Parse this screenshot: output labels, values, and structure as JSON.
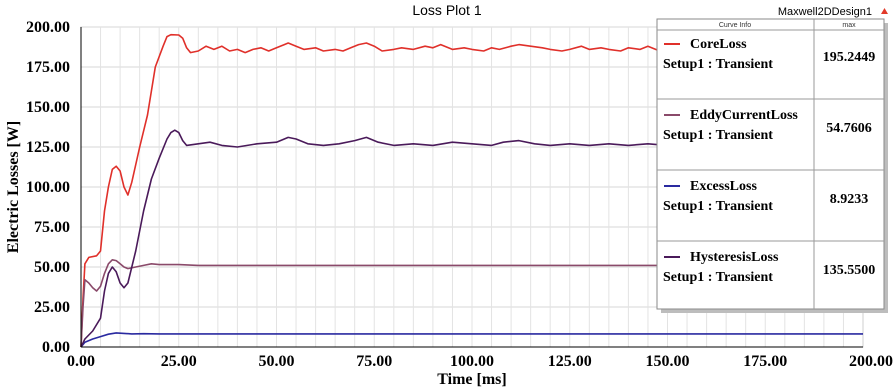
{
  "chart_data": {
    "type": "line",
    "title": "Loss Plot 1",
    "design_name": "Maxwell2DDesign1",
    "xlabel": "Time [ms]",
    "ylabel": "Electric Losses [W]",
    "xlim": [
      0,
      200
    ],
    "ylim": [
      0,
      200
    ],
    "x_ticks": [
      "0.00",
      "25.00",
      "50.00",
      "75.00",
      "100.00",
      "125.00",
      "150.00",
      "175.00",
      "200.00"
    ],
    "y_ticks": [
      "0.00",
      "25.00",
      "50.00",
      "75.00",
      "100.00",
      "125.00",
      "150.00",
      "175.00",
      "200.00"
    ],
    "grid": true,
    "legend": {
      "placement": "top-right",
      "header_left": "Curve Info",
      "header_right": "max",
      "entries": [
        {
          "name": "CoreLoss",
          "setup": "Setup1 : Transient",
          "max": "195.2449",
          "color": "#e0302a"
        },
        {
          "name": "EddyCurrentLoss",
          "setup": "Setup1 : Transient",
          "max": "54.7606",
          "color": "#8a4a6a"
        },
        {
          "name": "ExcessLoss",
          "setup": "Setup1 : Transient",
          "max": "8.9233",
          "color": "#2a2aa0"
        },
        {
          "name": "HysteresisLoss",
          "setup": "Setup1 : Transient",
          "max": "135.5500",
          "color": "#4a1a5a"
        }
      ]
    },
    "series": [
      {
        "name": "CoreLoss",
        "color": "#e0302a",
        "points": [
          [
            0,
            0
          ],
          [
            0.5,
            30
          ],
          [
            1,
            52
          ],
          [
            2,
            56
          ],
          [
            4,
            57
          ],
          [
            5,
            60
          ],
          [
            6,
            85
          ],
          [
            7,
            100
          ],
          [
            8,
            111
          ],
          [
            9,
            113
          ],
          [
            10,
            110
          ],
          [
            11,
            100
          ],
          [
            12,
            95
          ],
          [
            13,
            103
          ],
          [
            15,
            125
          ],
          [
            17,
            145
          ],
          [
            19,
            175
          ],
          [
            21,
            188
          ],
          [
            22,
            194
          ],
          [
            23,
            195.2
          ],
          [
            25,
            195
          ],
          [
            26,
            193
          ],
          [
            27,
            187
          ],
          [
            28,
            184
          ],
          [
            30,
            185
          ],
          [
            32,
            188
          ],
          [
            34,
            186
          ],
          [
            36,
            188
          ],
          [
            38,
            185
          ],
          [
            40,
            186
          ],
          [
            42,
            184
          ],
          [
            44,
            186
          ],
          [
            46,
            187
          ],
          [
            48,
            185
          ],
          [
            50,
            187
          ],
          [
            52,
            189
          ],
          [
            53,
            190
          ],
          [
            55,
            188
          ],
          [
            57,
            186
          ],
          [
            60,
            187
          ],
          [
            62,
            185
          ],
          [
            65,
            186
          ],
          [
            67,
            185
          ],
          [
            69,
            187
          ],
          [
            71,
            189
          ],
          [
            73,
            190
          ],
          [
            75,
            188
          ],
          [
            77,
            185
          ],
          [
            80,
            186
          ],
          [
            82,
            187
          ],
          [
            85,
            186
          ],
          [
            88,
            188
          ],
          [
            90,
            187
          ],
          [
            92,
            189
          ],
          [
            95,
            186
          ],
          [
            98,
            187
          ],
          [
            100,
            186
          ],
          [
            103,
            185
          ],
          [
            105,
            187
          ],
          [
            107,
            186
          ],
          [
            110,
            188
          ],
          [
            112,
            189
          ],
          [
            115,
            188
          ],
          [
            118,
            187
          ],
          [
            120,
            186
          ],
          [
            123,
            185
          ],
          [
            125,
            186
          ],
          [
            128,
            188
          ],
          [
            130,
            186
          ],
          [
            133,
            187
          ],
          [
            135,
            186
          ],
          [
            138,
            185
          ],
          [
            140,
            187
          ],
          [
            143,
            186
          ],
          [
            145,
            188
          ],
          [
            148,
            185
          ],
          [
            150,
            186
          ],
          [
            153,
            187
          ],
          [
            155,
            186
          ],
          [
            158,
            185
          ],
          [
            160,
            186
          ],
          [
            163,
            186
          ],
          [
            165,
            186
          ],
          [
            168,
            187
          ],
          [
            170,
            186
          ],
          [
            173,
            185
          ],
          [
            175,
            186
          ],
          [
            178,
            187
          ],
          [
            180,
            186
          ],
          [
            183,
            186
          ],
          [
            185,
            186
          ],
          [
            188,
            186
          ],
          [
            190,
            186
          ],
          [
            193,
            187
          ],
          [
            195,
            186
          ],
          [
            198,
            186
          ],
          [
            200,
            186
          ]
        ]
      },
      {
        "name": "EddyCurrentLoss",
        "color": "#8a4a6a",
        "points": [
          [
            0,
            0
          ],
          [
            0.5,
            25
          ],
          [
            1,
            42
          ],
          [
            2,
            40
          ],
          [
            3,
            37
          ],
          [
            4,
            35
          ],
          [
            5,
            38
          ],
          [
            6,
            46
          ],
          [
            7,
            52
          ],
          [
            8,
            54.5
          ],
          [
            9,
            54
          ],
          [
            10,
            52
          ],
          [
            11,
            50
          ],
          [
            12,
            49
          ],
          [
            14,
            50
          ],
          [
            16,
            51
          ],
          [
            18,
            52
          ],
          [
            20,
            51.5
          ],
          [
            25,
            51.5
          ],
          [
            30,
            51
          ],
          [
            40,
            51
          ],
          [
            50,
            51
          ],
          [
            75,
            51
          ],
          [
            100,
            51
          ],
          [
            125,
            51
          ],
          [
            150,
            51
          ],
          [
            175,
            51
          ],
          [
            200,
            51
          ]
        ]
      },
      {
        "name": "ExcessLoss",
        "color": "#2a2aa0",
        "points": [
          [
            0,
            0
          ],
          [
            1,
            3
          ],
          [
            3,
            5
          ],
          [
            5,
            6.5
          ],
          [
            7,
            8
          ],
          [
            9,
            8.8
          ],
          [
            11,
            8.5
          ],
          [
            13,
            8.2
          ],
          [
            16,
            8.3
          ],
          [
            20,
            8.2
          ],
          [
            30,
            8.2
          ],
          [
            50,
            8.2
          ],
          [
            100,
            8.2
          ],
          [
            150,
            8.2
          ],
          [
            200,
            8.2
          ]
        ]
      },
      {
        "name": "HysteresisLoss",
        "color": "#4a1a5a",
        "points": [
          [
            0,
            0
          ],
          [
            1,
            5
          ],
          [
            3,
            10
          ],
          [
            5,
            18
          ],
          [
            6,
            35
          ],
          [
            7,
            46
          ],
          [
            8,
            50
          ],
          [
            9,
            47
          ],
          [
            10,
            40
          ],
          [
            11,
            37
          ],
          [
            12,
            40
          ],
          [
            14,
            60
          ],
          [
            16,
            85
          ],
          [
            18,
            105
          ],
          [
            20,
            118
          ],
          [
            22,
            130
          ],
          [
            23,
            134
          ],
          [
            24,
            135.5
          ],
          [
            25,
            134
          ],
          [
            26,
            129
          ],
          [
            27,
            126
          ],
          [
            30,
            127
          ],
          [
            33,
            128
          ],
          [
            36,
            126
          ],
          [
            40,
            125
          ],
          [
            45,
            127
          ],
          [
            50,
            128
          ],
          [
            53,
            131
          ],
          [
            55,
            130
          ],
          [
            58,
            127
          ],
          [
            62,
            126
          ],
          [
            66,
            127
          ],
          [
            70,
            129
          ],
          [
            73,
            131
          ],
          [
            76,
            128
          ],
          [
            80,
            126
          ],
          [
            85,
            127
          ],
          [
            90,
            126
          ],
          [
            95,
            128
          ],
          [
            100,
            127
          ],
          [
            105,
            126
          ],
          [
            108,
            128
          ],
          [
            112,
            129
          ],
          [
            116,
            127
          ],
          [
            120,
            126
          ],
          [
            125,
            127
          ],
          [
            130,
            126
          ],
          [
            135,
            127
          ],
          [
            140,
            126
          ],
          [
            145,
            127
          ],
          [
            150,
            126
          ],
          [
            160,
            127
          ],
          [
            170,
            126
          ],
          [
            180,
            127
          ],
          [
            190,
            126
          ],
          [
            200,
            127
          ]
        ]
      }
    ]
  }
}
